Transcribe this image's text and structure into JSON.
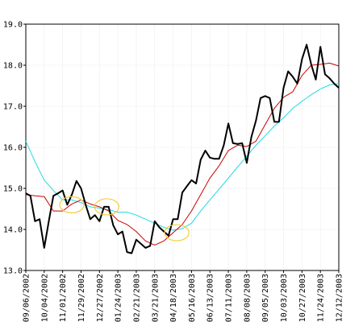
{
  "chart_data": {
    "type": "line",
    "title": "",
    "xlabel": "",
    "ylabel": "",
    "ylim": [
      13.0,
      19.0
    ],
    "grid": true,
    "y_ticks": [
      "13.0",
      "14.0",
      "15.0",
      "16.0",
      "17.0",
      "18.0",
      "19.0"
    ],
    "x_ticks": [
      "09/06/2002",
      "10/04/2002",
      "11/01/2002",
      "11/29/2002",
      "12/27/2002",
      "01/24/2003",
      "02/21/2003",
      "03/21/2003",
      "04/18/2003",
      "05/16/2003",
      "06/13/2003",
      "07/11/2003",
      "08/08/2003",
      "09/05/2003",
      "10/03/2003",
      "10/27/2003",
      "11/24/2003",
      "12/12/2003"
    ],
    "series": [
      {
        "color": "#000000",
        "x": [
          0,
          0.25,
          0.5,
          0.75,
          1,
          1.25,
          1.5,
          1.75,
          2,
          2.25,
          2.5,
          2.75,
          3,
          3.25,
          3.5,
          3.75,
          4,
          4.25,
          4.5,
          4.75,
          5,
          5.25,
          5.5,
          5.75,
          6,
          6.25,
          6.5,
          6.75,
          7,
          7.25,
          7.5,
          7.75,
          8,
          8.25,
          8.5,
          8.75,
          9,
          9.25,
          9.5,
          9.75,
          10,
          10.25,
          10.5,
          10.75,
          11,
          11.25,
          11.5,
          11.75,
          12,
          12.25,
          12.5,
          12.75,
          13,
          13.25,
          13.5,
          13.75,
          14,
          14.25,
          14.5,
          14.75,
          15,
          15.25,
          15.5,
          15.75,
          16,
          16.25,
          16.5,
          16.75,
          17
        ],
        "values": [
          14.88,
          14.82,
          14.2,
          14.25,
          13.55,
          14.2,
          14.82,
          14.88,
          14.95,
          14.6,
          14.85,
          15.18,
          15.0,
          14.6,
          14.25,
          14.35,
          14.2,
          14.55,
          14.55,
          14.1,
          13.88,
          13.95,
          13.45,
          13.42,
          13.75,
          13.65,
          13.55,
          13.6,
          14.2,
          14.05,
          13.95,
          13.85,
          14.25,
          14.25,
          14.9,
          15.05,
          15.2,
          15.12,
          15.7,
          15.92,
          15.75,
          15.72,
          15.72,
          16.05,
          16.58,
          16.1,
          16.08,
          16.1,
          15.62,
          16.25,
          16.65,
          17.2,
          17.25,
          17.2,
          16.62,
          16.62,
          17.45,
          17.85,
          17.72,
          17.55,
          18.15,
          18.5,
          18.02,
          17.65,
          18.45,
          17.78,
          17.68,
          17.55,
          17.45
        ]
      },
      {
        "color": "#cc0000",
        "x": [
          0,
          0.5,
          1,
          1.5,
          2,
          2.5,
          3,
          3.5,
          4,
          4.5,
          5,
          5.5,
          6,
          6.5,
          7,
          7.5,
          8,
          8.5,
          9,
          9.5,
          10,
          10.5,
          11,
          11.5,
          12,
          12.5,
          13,
          13.5,
          14,
          14.5,
          15,
          15.5,
          16,
          16.5,
          17
        ],
        "values": [
          14.85,
          14.82,
          14.8,
          14.45,
          14.45,
          14.62,
          14.72,
          14.62,
          14.55,
          14.45,
          14.22,
          14.12,
          13.95,
          13.72,
          13.62,
          13.72,
          13.92,
          14.12,
          14.45,
          14.85,
          15.25,
          15.55,
          15.92,
          16.05,
          16.02,
          16.15,
          16.55,
          16.95,
          17.22,
          17.35,
          17.75,
          18.0,
          18.02,
          18.05,
          17.98
        ]
      },
      {
        "color": "#22d8e6",
        "x": [
          0,
          0.5,
          1,
          1.5,
          2,
          2.5,
          3,
          3.5,
          4,
          4.5,
          5,
          5.5,
          6,
          6.5,
          7,
          7.5,
          8,
          8.5,
          9,
          9.5,
          10,
          10.5,
          11,
          11.5,
          12,
          12.5,
          13,
          13.5,
          14,
          14.5,
          15,
          15.5,
          16,
          16.5,
          17
        ],
        "values": [
          16.15,
          15.65,
          15.2,
          14.95,
          14.72,
          14.72,
          14.65,
          14.55,
          14.52,
          14.48,
          14.42,
          14.42,
          14.35,
          14.25,
          14.15,
          14.05,
          13.98,
          14.02,
          14.15,
          14.45,
          14.72,
          14.98,
          15.25,
          15.52,
          15.78,
          16.05,
          16.28,
          16.52,
          16.72,
          16.95,
          17.12,
          17.28,
          17.42,
          17.52,
          17.55
        ]
      }
    ],
    "highlight_color": "#f0cf3c",
    "highlights": [
      {
        "x": 2.5,
        "y": 14.6
      },
      {
        "x": 4.4,
        "y": 14.55
      },
      {
        "x": 8.2,
        "y": 13.92
      }
    ]
  }
}
